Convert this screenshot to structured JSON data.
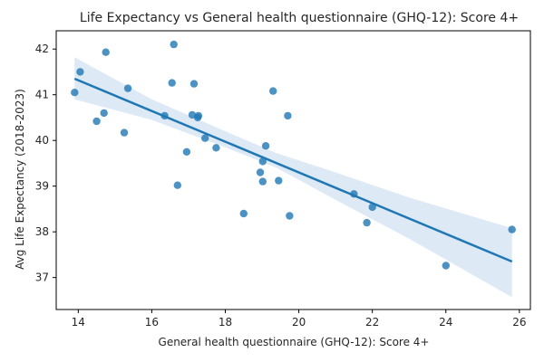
{
  "chart_data": {
    "type": "scatter",
    "title": "Life Expectancy vs General health questionnaire (GHQ-12): Score 4+",
    "xlabel": "General health questionnaire (GHQ-12): Score 4+",
    "ylabel": "Avg Life Expectancy (2018-2023)",
    "xlim": [
      13.4,
      26.3
    ],
    "ylim": [
      36.3,
      42.4
    ],
    "xticks": [
      14,
      16,
      18,
      20,
      22,
      24,
      26
    ],
    "yticks": [
      37,
      38,
      39,
      40,
      41,
      42
    ],
    "grid": false,
    "legend": "none",
    "colors": {
      "points": "#1f77b4",
      "regression_line": "#1f77b4",
      "confidence_band": "#c6dbef"
    },
    "points": [
      {
        "x": 13.9,
        "y": 41.05
      },
      {
        "x": 14.05,
        "y": 41.5
      },
      {
        "x": 14.5,
        "y": 40.42
      },
      {
        "x": 14.7,
        "y": 40.6
      },
      {
        "x": 14.75,
        "y": 41.93
      },
      {
        "x": 15.25,
        "y": 40.17
      },
      {
        "x": 15.35,
        "y": 41.14
      },
      {
        "x": 16.35,
        "y": 40.54
      },
      {
        "x": 16.55,
        "y": 41.26
      },
      {
        "x": 16.6,
        "y": 42.1
      },
      {
        "x": 16.7,
        "y": 39.02
      },
      {
        "x": 16.95,
        "y": 39.75
      },
      {
        "x": 17.1,
        "y": 40.56
      },
      {
        "x": 17.15,
        "y": 41.24
      },
      {
        "x": 17.25,
        "y": 40.5
      },
      {
        "x": 17.27,
        "y": 40.54
      },
      {
        "x": 17.45,
        "y": 40.05
      },
      {
        "x": 17.75,
        "y": 39.84
      },
      {
        "x": 18.5,
        "y": 38.4
      },
      {
        "x": 18.95,
        "y": 39.3
      },
      {
        "x": 19.02,
        "y": 39.54
      },
      {
        "x": 19.02,
        "y": 39.1
      },
      {
        "x": 19.1,
        "y": 39.88
      },
      {
        "x": 19.3,
        "y": 41.08
      },
      {
        "x": 19.45,
        "y": 39.12
      },
      {
        "x": 19.7,
        "y": 40.54
      },
      {
        "x": 19.75,
        "y": 38.35
      },
      {
        "x": 21.5,
        "y": 38.83
      },
      {
        "x": 21.85,
        "y": 38.2
      },
      {
        "x": 22.0,
        "y": 38.54
      },
      {
        "x": 24.0,
        "y": 37.26
      },
      {
        "x": 25.8,
        "y": 38.05
      }
    ],
    "regression": {
      "x_range": [
        13.9,
        25.8
      ],
      "y_start": 41.35,
      "y_end": 37.35,
      "band": [
        {
          "x": 13.9,
          "lo": 40.9,
          "hi": 41.82
        },
        {
          "x": 16.0,
          "lo": 40.45,
          "hi": 40.9
        },
        {
          "x": 18.0,
          "lo": 39.85,
          "hi": 40.2
        },
        {
          "x": 19.4,
          "lo": 39.4,
          "hi": 39.72
        },
        {
          "x": 21.0,
          "lo": 38.7,
          "hi": 39.3
        },
        {
          "x": 23.0,
          "lo": 37.85,
          "hi": 38.75
        },
        {
          "x": 25.8,
          "lo": 36.57,
          "hi": 38.08
        }
      ]
    }
  }
}
